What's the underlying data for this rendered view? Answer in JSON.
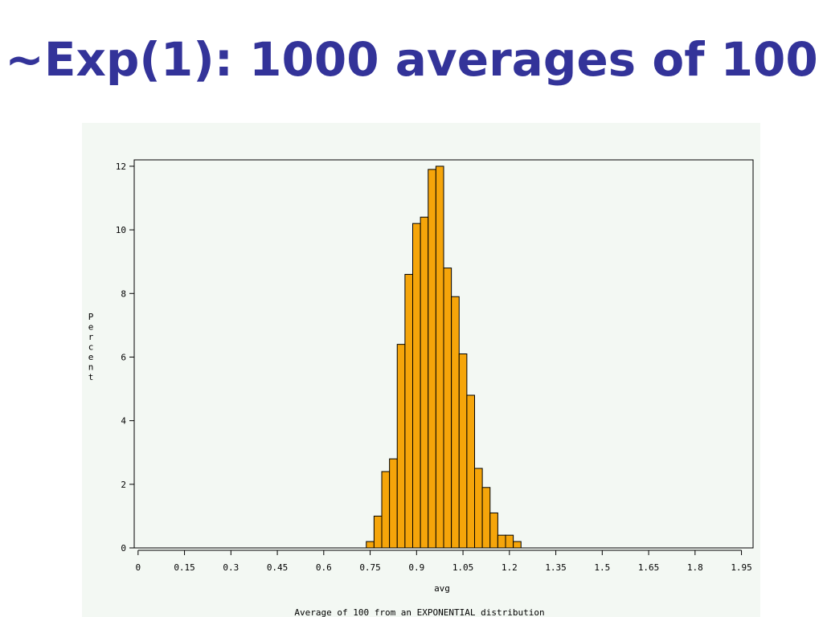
{
  "slide": {
    "title": "~Exp(1): 1000 averages of 100"
  },
  "chart_data": {
    "type": "bar",
    "subtype": "histogram",
    "title": "",
    "xlabel": "avg",
    "ylabel": "Percent",
    "footnote": "Average of 100 from an EXPONENTIAL distribution",
    "bin_width": 0.025,
    "xlim": [
      -0.0125,
      1.9875
    ],
    "ylim": [
      0,
      12.2
    ],
    "x_ticks": [
      "0",
      "0.15",
      "0.3",
      "0.45",
      "0.6",
      "0.75",
      "0.9",
      "1.05",
      "1.2",
      "1.35",
      "1.5",
      "1.65",
      "1.8",
      "1.95"
    ],
    "y_ticks": [
      "0",
      "2",
      "4",
      "6",
      "8",
      "10",
      "12"
    ],
    "bins": [
      {
        "left": 0.7375,
        "value": 0.2
      },
      {
        "left": 0.7625,
        "value": 1.0
      },
      {
        "left": 0.7875,
        "value": 2.4
      },
      {
        "left": 0.8125,
        "value": 2.8
      },
      {
        "left": 0.8375,
        "value": 6.4
      },
      {
        "left": 0.8625,
        "value": 8.6
      },
      {
        "left": 0.8875,
        "value": 10.2
      },
      {
        "left": 0.9125,
        "value": 10.4
      },
      {
        "left": 0.9375,
        "value": 11.9
      },
      {
        "left": 0.9625,
        "value": 12.0
      },
      {
        "left": 0.9875,
        "value": 8.8
      },
      {
        "left": 1.0125,
        "value": 7.9
      },
      {
        "left": 1.0375,
        "value": 6.1
      },
      {
        "left": 1.0625,
        "value": 4.8
      },
      {
        "left": 1.0875,
        "value": 2.5
      },
      {
        "left": 1.1125,
        "value": 1.9
      },
      {
        "left": 1.1375,
        "value": 1.1
      },
      {
        "left": 1.1625,
        "value": 0.4
      },
      {
        "left": 1.1875,
        "value": 0.4
      },
      {
        "left": 1.2125,
        "value": 0.2
      }
    ],
    "bar_color": "#f5a50a",
    "bar_outline": "#000000",
    "grid": false
  }
}
